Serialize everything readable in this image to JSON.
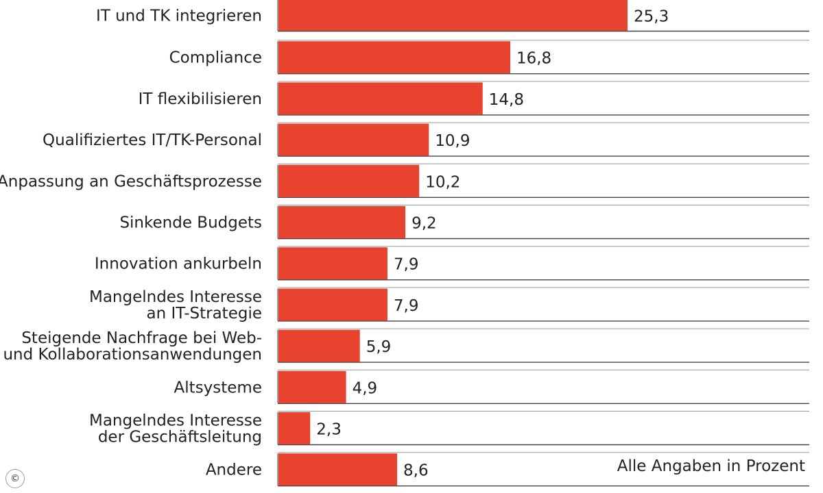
{
  "chart_data": {
    "type": "bar",
    "orientation": "horizontal",
    "categories": [
      [
        "IT und TK integrieren"
      ],
      [
        "Compliance"
      ],
      [
        "IT flexibilisieren"
      ],
      [
        "Qualifiziertes IT/TK-Personal"
      ],
      [
        "Anpassung an Geschäftsprozesse"
      ],
      [
        "Sinkende Budgets"
      ],
      [
        "Innovation ankurbeln"
      ],
      [
        "Mangelndes Interesse",
        "an IT-Strategie"
      ],
      [
        "Steigende Nachfrage bei Web-",
        "und Kollaborationsanwendungen"
      ],
      [
        "Altsysteme"
      ],
      [
        "Mangelndes Interesse",
        "der Geschäftsleitung"
      ],
      [
        "Andere"
      ]
    ],
    "values": [
      25.3,
      16.8,
      14.8,
      10.9,
      10.2,
      9.2,
      7.9,
      7.9,
      5.9,
      4.9,
      2.3,
      8.6
    ],
    "value_labels": [
      "25,3",
      "16,8",
      "14,8",
      "10,9",
      "10,2",
      "9,2",
      "7,9",
      "7,9",
      "5,9",
      "4,9",
      "2,3",
      "8,6"
    ],
    "xlim": [
      0,
      25.3
    ],
    "grid": false,
    "colors": {
      "bar": "#e8432f",
      "row_line": "#444444",
      "text": "#222222"
    }
  },
  "note": "Alle Angaben in Prozent",
  "copyright_symbol": "©"
}
